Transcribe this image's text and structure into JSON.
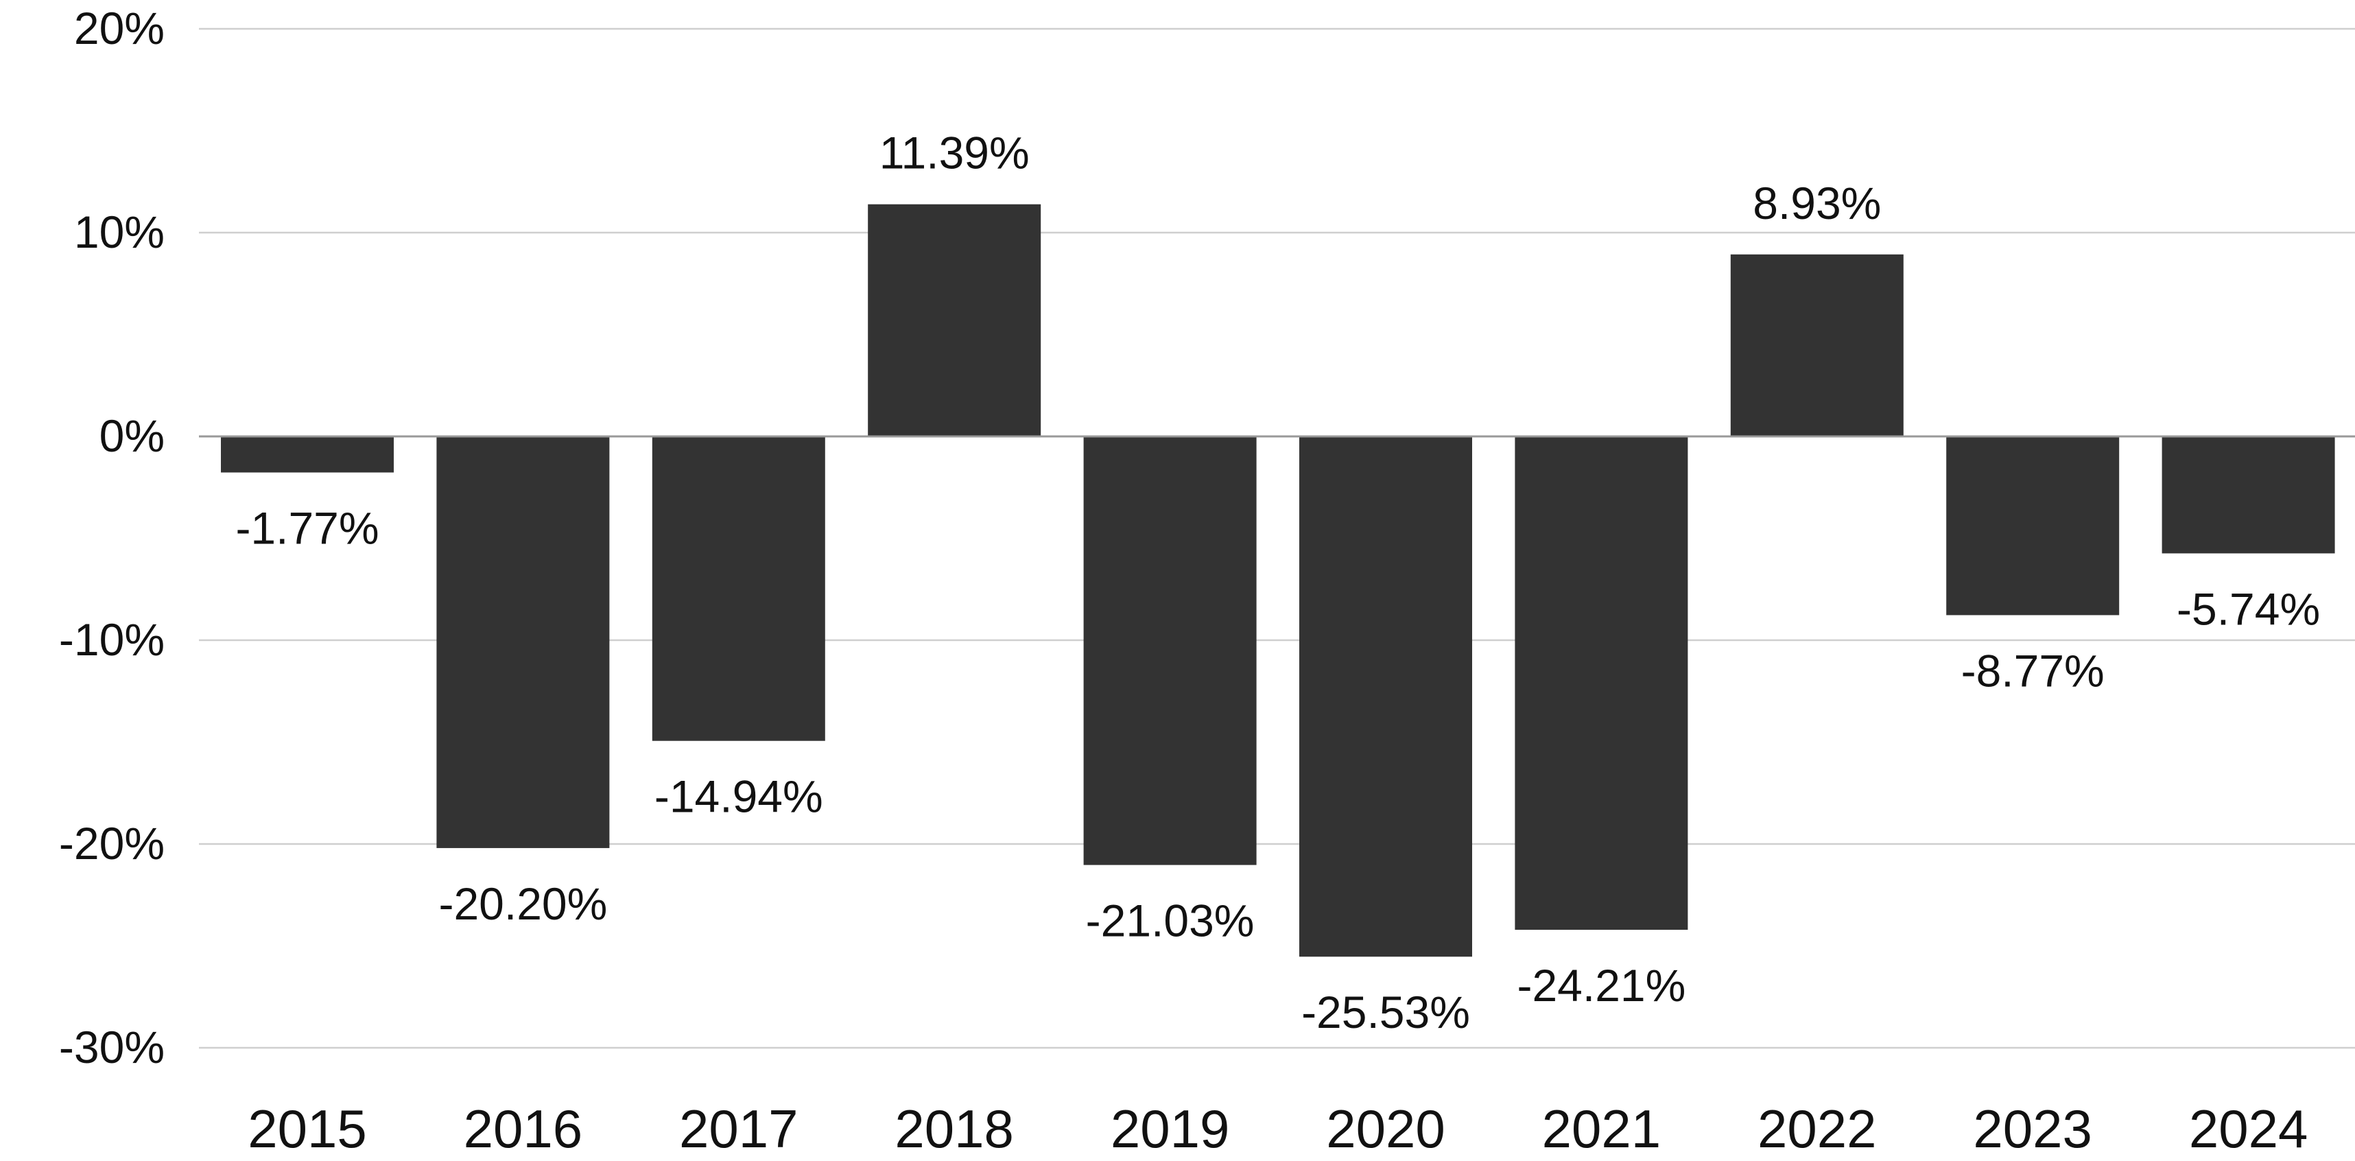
{
  "chart_data": {
    "type": "bar",
    "title": "",
    "xlabel": "",
    "ylabel": "",
    "categories": [
      "2015",
      "2016",
      "2017",
      "2018",
      "2019",
      "2020",
      "2021",
      "2022",
      "2023",
      "2024"
    ],
    "values": [
      -1.77,
      -20.2,
      -14.94,
      11.39,
      -21.03,
      -25.53,
      -24.21,
      8.93,
      -8.77,
      -5.74
    ],
    "data_labels": [
      "-1.77%",
      "-20.20%",
      "-14.94%",
      "11.39%",
      "-21.03%",
      "-25.53%",
      "-24.21%",
      "8.93%",
      "-8.77%",
      "-5.74%"
    ],
    "ylim": [
      -30,
      20
    ],
    "yticks": [
      20,
      10,
      0,
      -10,
      -20,
      -30
    ],
    "ytick_labels": [
      "20%",
      "10%",
      "0%",
      "-10%",
      "-20%",
      "-30%"
    ],
    "grid": true,
    "legend": "none",
    "bar_color": "#333333"
  }
}
